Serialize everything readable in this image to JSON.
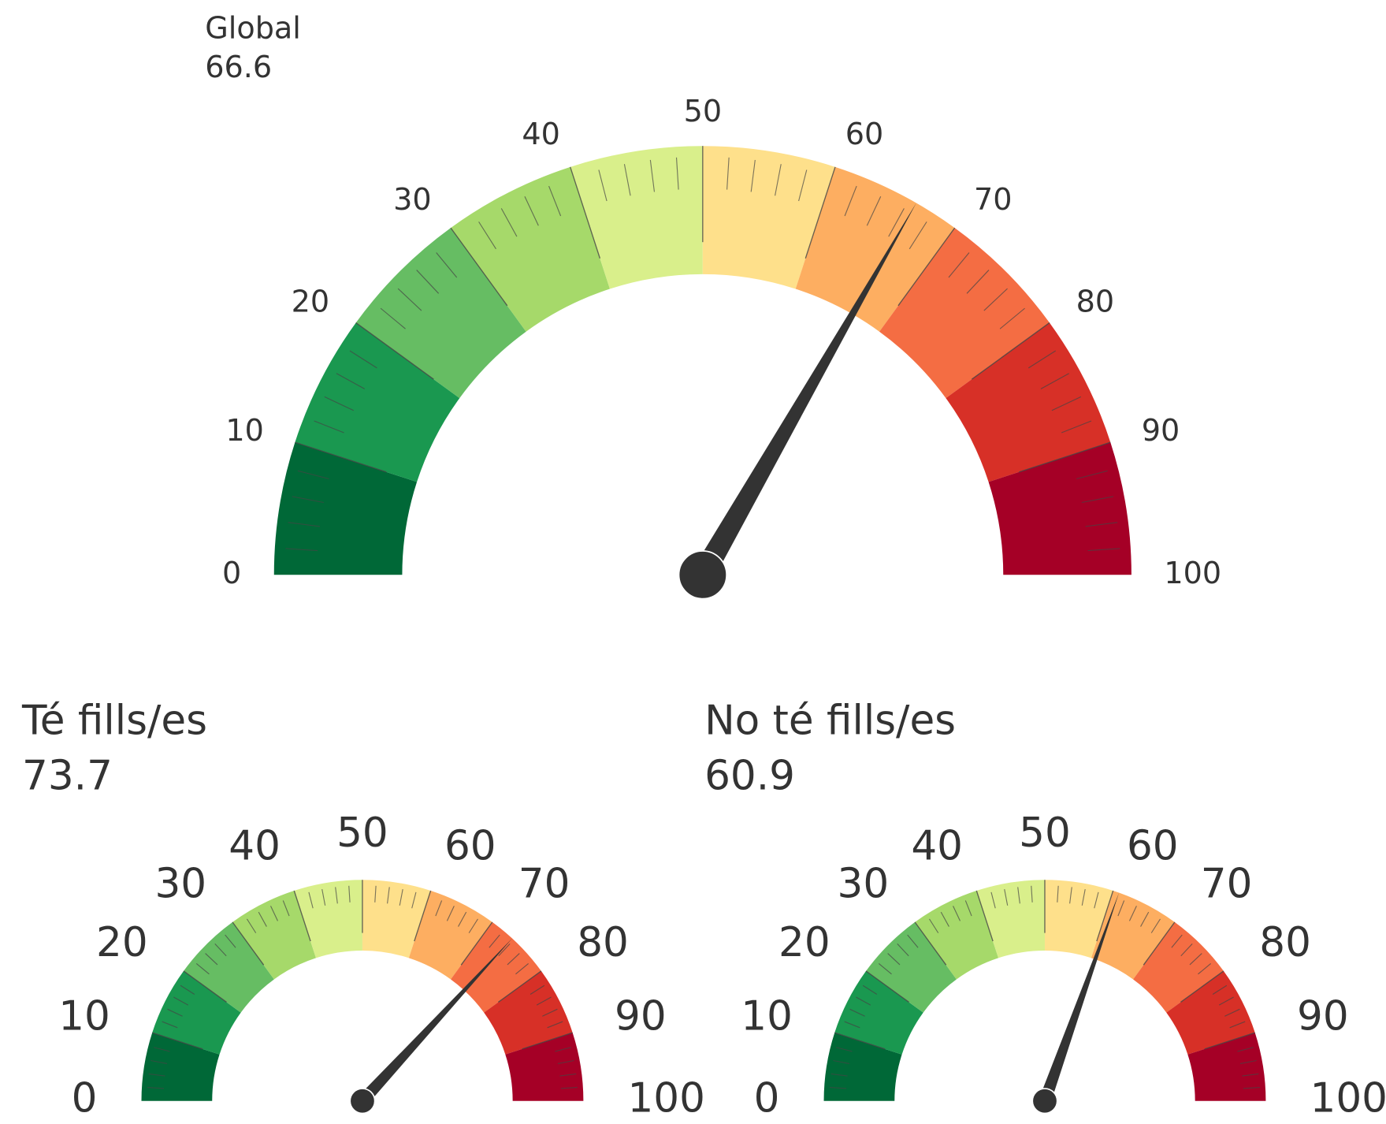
{
  "chart_data": [
    {
      "type": "gauge",
      "title": "Global",
      "value": 66.6,
      "lim": [
        0,
        100
      ],
      "ticks": [
        0,
        10,
        20,
        30,
        40,
        50,
        60,
        70,
        80,
        90,
        100
      ],
      "colors": [
        "#006837",
        "#1a9850",
        "#66bd63",
        "#a6d96a",
        "#d9ef8b",
        "#fee08b",
        "#fdae61",
        "#f46d43",
        "#d73027",
        "#a50026"
      ]
    },
    {
      "type": "gauge",
      "title": "Té fills/es",
      "value": 73.7,
      "lim": [
        0,
        100
      ],
      "ticks": [
        0,
        10,
        20,
        30,
        40,
        50,
        60,
        70,
        80,
        90,
        100
      ],
      "colors": [
        "#006837",
        "#1a9850",
        "#66bd63",
        "#a6d96a",
        "#d9ef8b",
        "#fee08b",
        "#fdae61",
        "#f46d43",
        "#d73027",
        "#a50026"
      ]
    },
    {
      "type": "gauge",
      "title": "No té fills/es",
      "value": 60.9,
      "lim": [
        0,
        100
      ],
      "ticks": [
        0,
        10,
        20,
        30,
        40,
        50,
        60,
        70,
        80,
        90,
        100
      ],
      "colors": [
        "#006837",
        "#1a9850",
        "#66bd63",
        "#a6d96a",
        "#d9ef8b",
        "#fee08b",
        "#fdae61",
        "#f46d43",
        "#d73027",
        "#a50026"
      ]
    }
  ]
}
